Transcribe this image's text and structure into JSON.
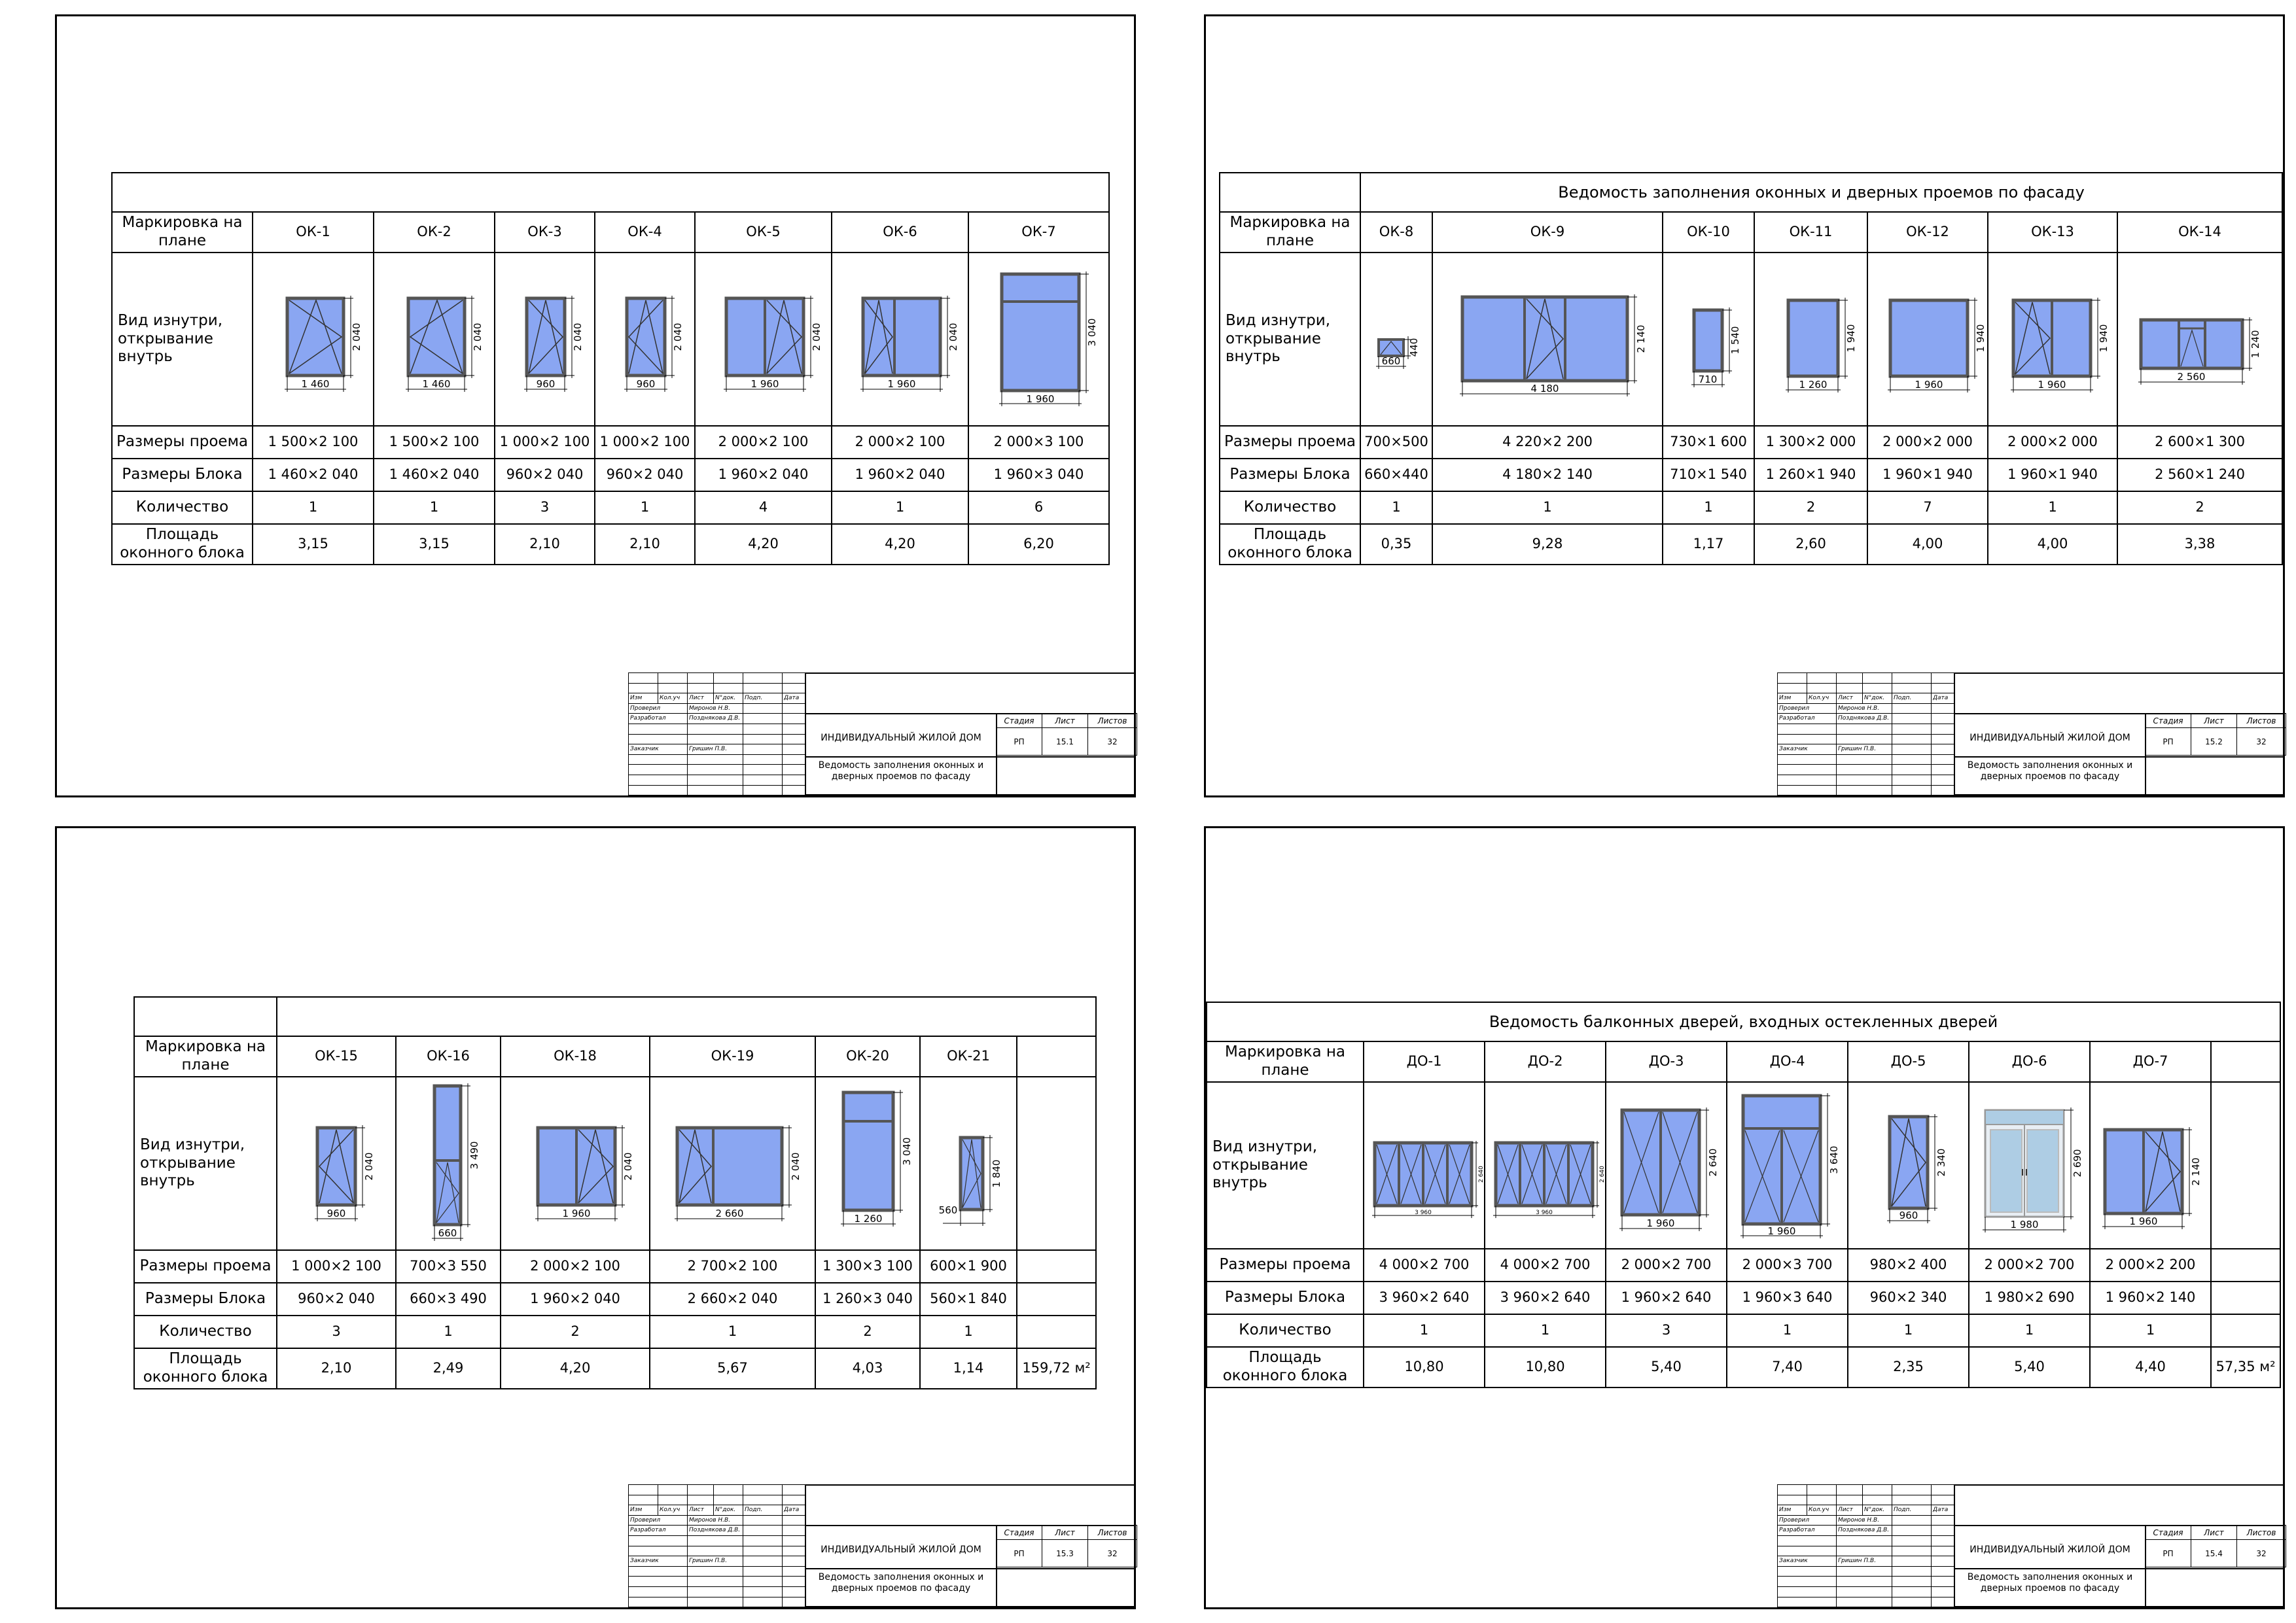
{
  "row_labels": {
    "mark": "Маркировка на плане",
    "view": "Вид изнутри, открывание внутрь",
    "opening": "Размеры проема",
    "block": "Размеры Блока",
    "qty": "Количество",
    "area_block": "Площадь оконного блока",
    "area_block_one_line": "Площадь оконного блока"
  },
  "sheets": [
    {
      "title": "",
      "items": [
        {
          "mark": "ОК-1",
          "w": "1 460",
          "h": "2 040",
          "opening": "1 500×2 100",
          "block": "1 460×2 040",
          "qty": "1",
          "area": "3,15"
        },
        {
          "mark": "ОК-2",
          "w": "1 460",
          "h": "2 040",
          "opening": "1 500×2 100",
          "block": "1 460×2 040",
          "qty": "1",
          "area": "3,15"
        },
        {
          "mark": "ОК-3",
          "w": "960",
          "h": "2 040",
          "opening": "1 000×2 100",
          "block": "960×2 040",
          "qty": "3",
          "area": "2,10"
        },
        {
          "mark": "ОК-4",
          "w": "960",
          "h": "2 040",
          "opening": "1 000×2 100",
          "block": "960×2 040",
          "qty": "1",
          "area": "2,10"
        },
        {
          "mark": "ОК-5",
          "w": "1 960",
          "h": "2 040",
          "opening": "2 000×2 100",
          "block": "1 960×2 040",
          "qty": "4",
          "area": "4,20"
        },
        {
          "mark": "ОК-6",
          "w": "1 960",
          "h": "2 040",
          "opening": "2 000×2 100",
          "block": "1 960×2 040",
          "qty": "1",
          "area": "4,20"
        },
        {
          "mark": "ОК-7",
          "w": "1 960",
          "h": "3 040",
          "opening": "2 000×3 100",
          "block": "1 960×3 040",
          "qty": "6",
          "area": "6,20"
        }
      ],
      "total": ""
    },
    {
      "title": "Ведомость заполнения оконных и дверных проемов по фасаду",
      "items": [
        {
          "mark": "ОК-8",
          "w": "660",
          "h": "440",
          "opening": "700×500",
          "block": "660×440",
          "qty": "1",
          "area": "0,35"
        },
        {
          "mark": "ОК-9",
          "w": "4 180",
          "h": "2 140",
          "opening": "4 220×2 200",
          "block": "4 180×2 140",
          "qty": "1",
          "area": "9,28"
        },
        {
          "mark": "ОК-10",
          "w": "710",
          "h": "1 540",
          "opening": "730×1 600",
          "block": "710×1 540",
          "qty": "1",
          "area": "1,17"
        },
        {
          "mark": "ОК-11",
          "w": "1 260",
          "h": "1 940",
          "opening": "1 300×2 000",
          "block": "1 260×1 940",
          "qty": "2",
          "area": "2,60"
        },
        {
          "mark": "ОК-12",
          "w": "1 960",
          "h": "1 940",
          "opening": "2 000×2 000",
          "block": "1 960×1 940",
          "qty": "7",
          "area": "4,00"
        },
        {
          "mark": "ОК-13",
          "w": "1 960",
          "h": "1 940",
          "opening": "2 000×2 000",
          "block": "1 960×1 940",
          "qty": "1",
          "area": "4,00"
        },
        {
          "mark": "ОК-14",
          "w": "2 560",
          "h": "1 240",
          "opening": "2 600×1 300",
          "block": "2 560×1 240",
          "qty": "2",
          "area": "3,38"
        }
      ],
      "total": ""
    },
    {
      "title": "",
      "items": [
        {
          "mark": "ОК-15",
          "w": "960",
          "h": "2 040",
          "opening": "1 000×2 100",
          "block": "960×2 040",
          "qty": "3",
          "area": "2,10"
        },
        {
          "mark": "ОК-16",
          "w": "660",
          "h": "3 490",
          "opening": "700×3 550",
          "block": "660×3 490",
          "qty": "1",
          "area": "2,49"
        },
        {
          "mark": "ОК-18",
          "w": "1 960",
          "h": "2 040",
          "opening": "2 000×2 100",
          "block": "1 960×2 040",
          "qty": "2",
          "area": "4,20"
        },
        {
          "mark": "ОК-19",
          "w": "2 660",
          "h": "2 040",
          "opening": "2 700×2 100",
          "block": "2 660×2 040",
          "qty": "1",
          "area": "5,67"
        },
        {
          "mark": "ОК-20",
          "w": "1 260",
          "h": "3 040",
          "opening": "1 300×3 100",
          "block": "1 260×3 040",
          "qty": "2",
          "area": "4,03"
        },
        {
          "mark": "ОК-21",
          "w": "560",
          "h": "1 840",
          "opening": "600×1 900",
          "block": "560×1 840",
          "qty": "1",
          "area": "1,14"
        }
      ],
      "total": "159,72 м²"
    },
    {
      "title": "Ведомость балконных дверей, входных остекленных дверей",
      "items": [
        {
          "mark": "ДО-1",
          "w": "3 960",
          "h": "2 640",
          "opening": "4 000×2 700",
          "block": "3 960×2 640",
          "qty": "1",
          "area": "10,80"
        },
        {
          "mark": "ДО-2",
          "w": "3 960",
          "h": "2 640",
          "opening": "4 000×2 700",
          "block": "3 960×2 640",
          "qty": "1",
          "area": "10,80"
        },
        {
          "mark": "ДО-3",
          "w": "1 960",
          "h": "2 640",
          "opening": "2 000×2 700",
          "block": "1 960×2 640",
          "qty": "3",
          "area": "5,40"
        },
        {
          "mark": "ДО-4",
          "w": "1 960",
          "h": "3 640",
          "opening": "2 000×3 700",
          "block": "1 960×3 640",
          "qty": "1",
          "area": "7,40"
        },
        {
          "mark": "ДО-5",
          "w": "960",
          "h": "2 340",
          "opening": "980×2 400",
          "block": "960×2 340",
          "qty": "1",
          "area": "2,35"
        },
        {
          "mark": "ДО-6",
          "w": "1 980",
          "h": "2 690",
          "opening": "2 000×2 700",
          "block": "1 980×2 690",
          "qty": "1",
          "area": "5,40"
        },
        {
          "mark": "ДО-7",
          "w": "1 960",
          "h": "2 140",
          "opening": "2 000×2 200",
          "block": "1 960×2 140",
          "qty": "1",
          "area": "4,40"
        }
      ],
      "total": "57,35 м²"
    }
  ],
  "title_block": {
    "header": [
      "Изм",
      "Кол.уч",
      "Лист",
      "N°док.",
      "Подп.",
      "Дата"
    ],
    "checked_label": "Проверил",
    "checked_name": "Миронов Н.В.",
    "developed_label": "Разработал",
    "developed_name": "Позднякова Д.В.",
    "customer_label": "Заказчик",
    "customer_name": "Гришин П.В.",
    "project": "ИНДИВИДУАЛЬНЫЙ ЖИЛОЙ ДОМ",
    "sheet_name": "Ведомость заполнения оконных и дверных проемов по фасаду",
    "stage_hdr": "Стадия",
    "sheet_hdr": "Лист",
    "sheets_hdr": "Листов",
    "stage": "РП",
    "total_sheets": "32",
    "sheet_numbers": [
      "15.1",
      "15.2",
      "15.3",
      "15.4"
    ]
  },
  "colors": {
    "glass": "#8aa6f2",
    "glass_light": "#aecde4",
    "frame": "#555555"
  }
}
